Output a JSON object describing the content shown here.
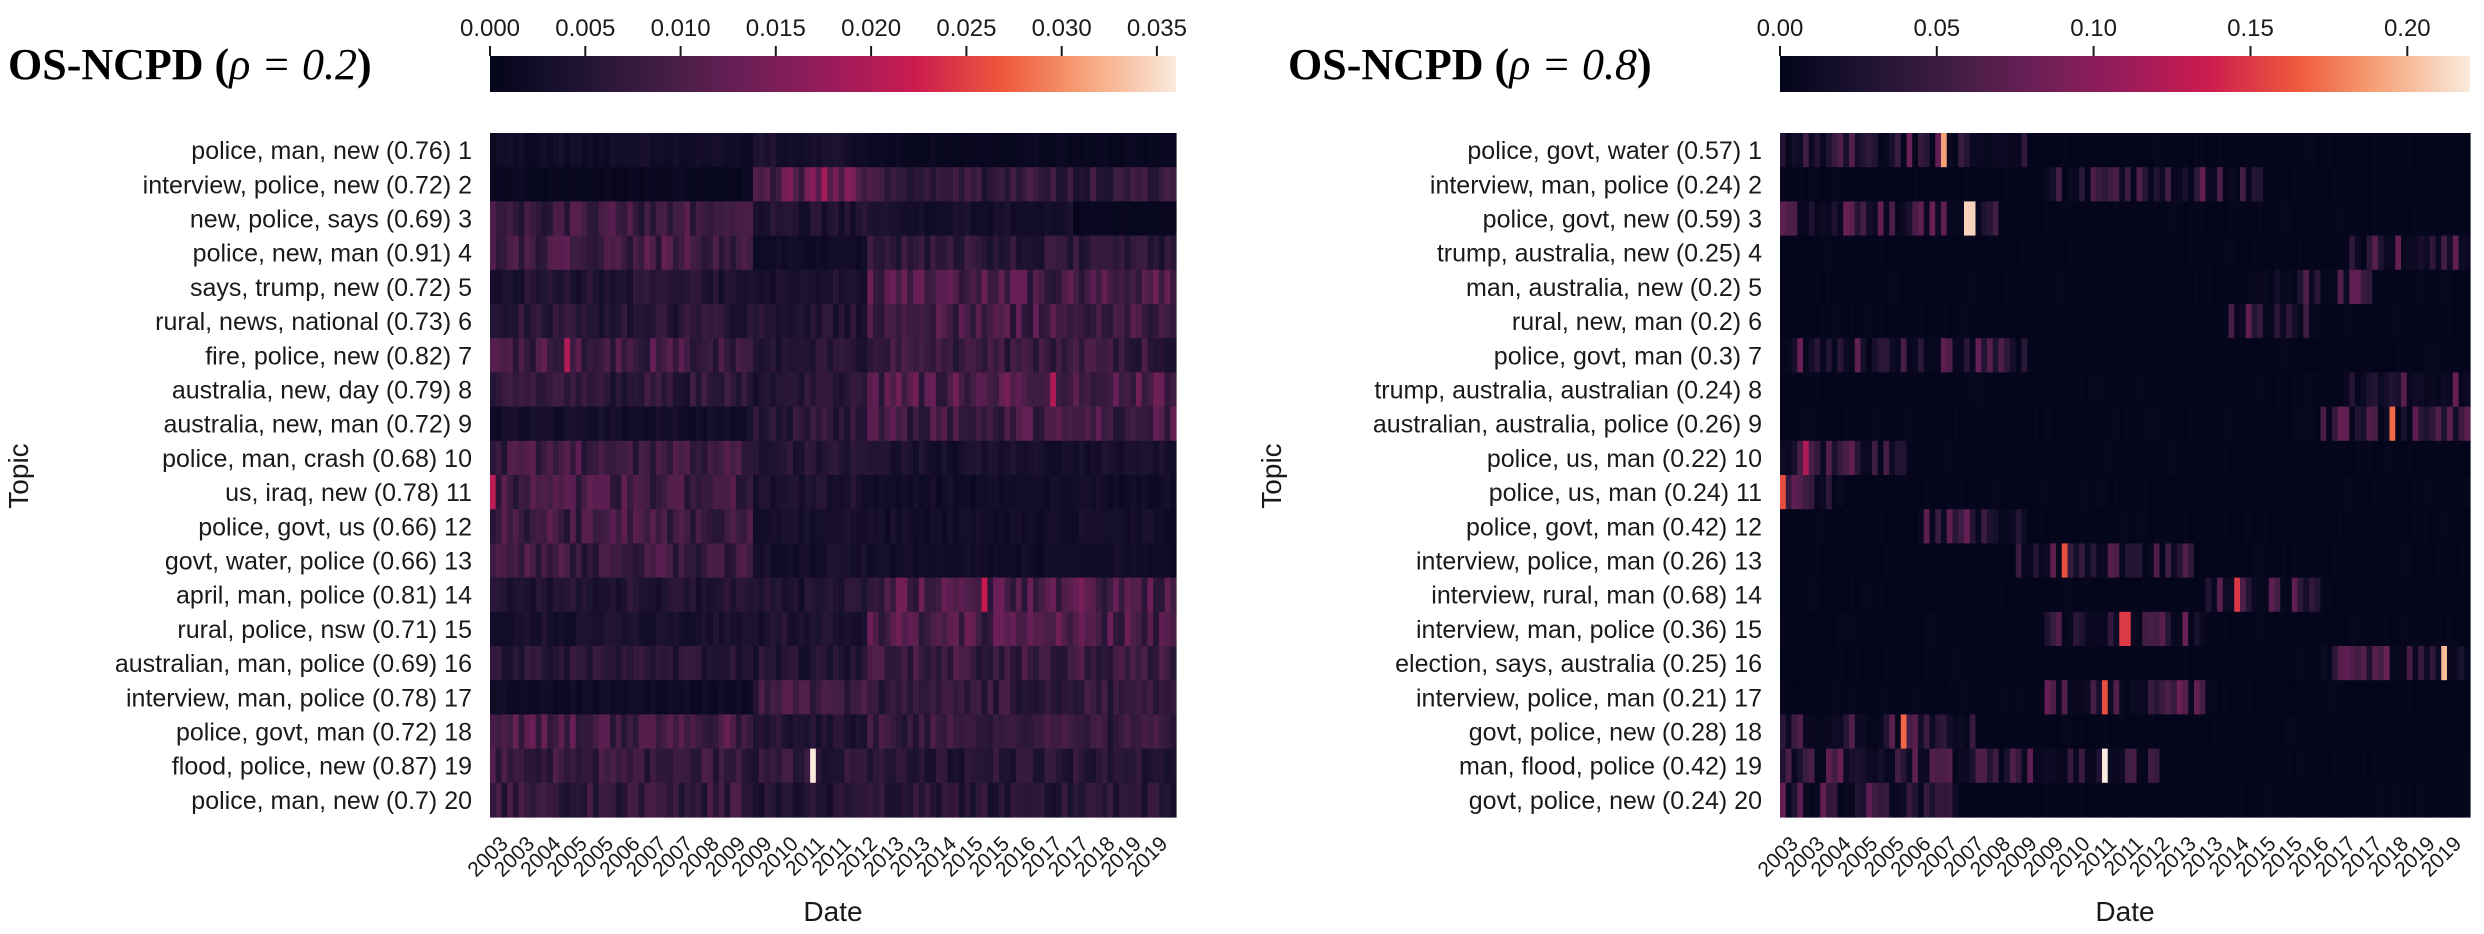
{
  "chart_data": [
    {
      "type": "heatmap",
      "title": "OS-NCPD (ρ = 0.2)",
      "title_prefix": "OS-NCPD (",
      "title_rho": "ρ = 0.2",
      "title_suffix": ")",
      "xlabel": "Date",
      "ylabel": "Topic",
      "x_tick_labels": [
        "2003",
        "2003",
        "2004",
        "2005",
        "2005",
        "2006",
        "2007",
        "2007",
        "2008",
        "2009",
        "2009",
        "2010",
        "2011",
        "2011",
        "2012",
        "2013",
        "2013",
        "2014",
        "2015",
        "2015",
        "2016",
        "2017",
        "2017",
        "2018",
        "2019",
        "2019"
      ],
      "rows": [
        {
          "label": "police, man, new",
          "score": "(0.76)",
          "index": "1"
        },
        {
          "label": "interview, police, new",
          "score": "(0.72)",
          "index": "2"
        },
        {
          "label": "new, police, says",
          "score": "(0.69)",
          "index": "3"
        },
        {
          "label": "police, new, man",
          "score": "(0.91)",
          "index": "4"
        },
        {
          "label": "says, trump, new",
          "score": "(0.72)",
          "index": "5"
        },
        {
          "label": "rural, news, national",
          "score": "(0.73)",
          "index": "6"
        },
        {
          "label": "fire, police, new",
          "score": "(0.82)",
          "index": "7"
        },
        {
          "label": "australia, new, day",
          "score": "(0.79)",
          "index": "8"
        },
        {
          "label": "australia, new, man",
          "score": "(0.72)",
          "index": "9"
        },
        {
          "label": "police, man, crash",
          "score": "(0.68)",
          "index": "10"
        },
        {
          "label": "us, iraq, new",
          "score": "(0.78)",
          "index": "11"
        },
        {
          "label": "police, govt, us",
          "score": "(0.66)",
          "index": "12"
        },
        {
          "label": "govt, water, police",
          "score": "(0.66)",
          "index": "13"
        },
        {
          "label": "april, man, police",
          "score": "(0.81)",
          "index": "14"
        },
        {
          "label": "rural, police, nsw",
          "score": "(0.71)",
          "index": "15"
        },
        {
          "label": "australian, man, police",
          "score": "(0.69)",
          "index": "16"
        },
        {
          "label": "interview, man, police",
          "score": "(0.78)",
          "index": "17"
        },
        {
          "label": "police, govt, man",
          "score": "(0.72)",
          "index": "18"
        },
        {
          "label": "flood, police, new",
          "score": "(0.87)",
          "index": "19"
        },
        {
          "label": "police, man, new",
          "score": "(0.7)",
          "index": "20"
        }
      ],
      "colorbar": {
        "range": [
          0.0,
          0.036
        ],
        "ticks": [
          0.0,
          0.005,
          0.01,
          0.015,
          0.02,
          0.025,
          0.03,
          0.035
        ],
        "tick_labels": [
          "0.000",
          "0.005",
          "0.010",
          "0.015",
          "0.020",
          "0.025",
          "0.030",
          "0.035"
        ]
      },
      "activity_profile": [
        {
          "level": 0.006,
          "spans": [
            [
              0.0,
              0.38,
              0.4
            ],
            [
              0.38,
              0.55,
              0.6
            ],
            [
              0.55,
              1.0,
              0.2
            ]
          ]
        },
        {
          "level": 0.008,
          "spans": [
            [
              0.0,
              0.38,
              0.15
            ],
            [
              0.38,
              0.55,
              1.4
            ],
            [
              0.55,
              1.0,
              0.9
            ]
          ]
        },
        {
          "level": 0.008,
          "spans": [
            [
              0.0,
              0.38,
              1.0
            ],
            [
              0.38,
              0.55,
              0.55
            ],
            [
              0.55,
              0.85,
              0.4
            ],
            [
              0.85,
              1.0,
              0.1
            ]
          ]
        },
        {
          "level": 0.009,
          "spans": [
            [
              0.0,
              0.38,
              1.0
            ],
            [
              0.38,
              0.55,
              0.25
            ],
            [
              0.55,
              1.0,
              0.7
            ]
          ]
        },
        {
          "level": 0.008,
          "spans": [
            [
              0.0,
              0.38,
              0.6
            ],
            [
              0.38,
              0.55,
              0.55
            ],
            [
              0.55,
              1.0,
              1.2
            ]
          ]
        },
        {
          "level": 0.008,
          "spans": [
            [
              0.0,
              0.38,
              0.7
            ],
            [
              0.38,
              0.55,
              0.6
            ],
            [
              0.55,
              1.0,
              1.1
            ]
          ]
        },
        {
          "level": 0.009,
          "spans": [
            [
              0.0,
              0.38,
              1.0
            ],
            [
              0.38,
              0.55,
              0.55
            ],
            [
              0.55,
              1.0,
              0.8
            ]
          ]
        },
        {
          "level": 0.009,
          "spans": [
            [
              0.0,
              0.38,
              0.7
            ],
            [
              0.38,
              0.55,
              0.6
            ],
            [
              0.55,
              1.0,
              1.1
            ]
          ]
        },
        {
          "level": 0.008,
          "spans": [
            [
              0.0,
              0.38,
              0.35
            ],
            [
              0.38,
              0.55,
              0.75
            ],
            [
              0.55,
              1.0,
              1.1
            ]
          ]
        },
        {
          "level": 0.008,
          "spans": [
            [
              0.0,
              0.38,
              1.05
            ],
            [
              0.38,
              0.55,
              0.7
            ],
            [
              0.55,
              1.0,
              0.45
            ]
          ]
        },
        {
          "level": 0.008,
          "spans": [
            [
              0.0,
              0.38,
              1.1
            ],
            [
              0.38,
              0.55,
              0.5
            ],
            [
              0.55,
              1.0,
              0.3
            ]
          ]
        },
        {
          "level": 0.008,
          "spans": [
            [
              0.0,
              0.38,
              1.05
            ],
            [
              0.38,
              0.55,
              0.45
            ],
            [
              0.55,
              1.0,
              0.35
            ]
          ]
        },
        {
          "level": 0.008,
          "spans": [
            [
              0.0,
              0.38,
              1.0
            ],
            [
              0.38,
              0.55,
              0.4
            ],
            [
              0.55,
              1.0,
              0.3
            ]
          ]
        },
        {
          "level": 0.009,
          "spans": [
            [
              0.0,
              0.38,
              0.55
            ],
            [
              0.38,
              0.55,
              0.55
            ],
            [
              0.55,
              1.0,
              1.15
            ]
          ]
        },
        {
          "level": 0.008,
          "spans": [
            [
              0.0,
              0.38,
              0.45
            ],
            [
              0.38,
              0.55,
              0.55
            ],
            [
              0.55,
              1.0,
              1.2
            ]
          ]
        },
        {
          "level": 0.008,
          "spans": [
            [
              0.0,
              0.38,
              0.7
            ],
            [
              0.38,
              0.55,
              0.6
            ],
            [
              0.55,
              1.0,
              0.95
            ]
          ]
        },
        {
          "level": 0.008,
          "spans": [
            [
              0.0,
              0.38,
              0.25
            ],
            [
              0.38,
              0.55,
              1.1
            ],
            [
              0.55,
              1.0,
              0.85
            ]
          ]
        },
        {
          "level": 0.009,
          "spans": [
            [
              0.0,
              0.38,
              1.05
            ],
            [
              0.38,
              0.55,
              0.6
            ],
            [
              0.55,
              1.0,
              0.8
            ]
          ]
        },
        {
          "level": 0.008,
          "spans": [
            [
              0.0,
              0.38,
              0.95
            ],
            [
              0.38,
              0.55,
              0.8
            ],
            [
              0.55,
              1.0,
              0.7
            ]
          ]
        },
        {
          "level": 0.008,
          "spans": [
            [
              0.0,
              0.38,
              0.9
            ],
            [
              0.38,
              0.55,
              0.6
            ],
            [
              0.55,
              1.0,
              0.7
            ]
          ]
        }
      ],
      "spikes": [
        {
          "row": 7,
          "at": 0.11,
          "value": 0.02
        },
        {
          "row": 19,
          "at": 0.47,
          "value": 0.036
        },
        {
          "row": 14,
          "at": 0.72,
          "value": 0.022
        },
        {
          "row": 8,
          "at": 0.82,
          "value": 0.02
        },
        {
          "row": 11,
          "at": 0.003,
          "value": 0.021
        },
        {
          "row": 2,
          "at": 0.485,
          "value": 0.019
        }
      ]
    },
    {
      "type": "heatmap",
      "title": "OS-NCPD (ρ = 0.8)",
      "title_prefix": "OS-NCPD (",
      "title_rho": "ρ = 0.8",
      "title_suffix": ")",
      "xlabel": "Date",
      "ylabel": "Topic",
      "x_tick_labels": [
        "2003",
        "2003",
        "2004",
        "2005",
        "2005",
        "2006",
        "2007",
        "2007",
        "2008",
        "2009",
        "2009",
        "2010",
        "2011",
        "2011",
        "2012",
        "2013",
        "2013",
        "2014",
        "2015",
        "2015",
        "2016",
        "2017",
        "2017",
        "2018",
        "2019",
        "2019"
      ],
      "rows": [
        {
          "label": "police, govt, water",
          "score": "(0.57)",
          "index": "1"
        },
        {
          "label": "interview, man, police",
          "score": "(0.24)",
          "index": "2"
        },
        {
          "label": "police, govt, new",
          "score": "(0.59)",
          "index": "3"
        },
        {
          "label": "trump, australia, new",
          "score": "(0.25)",
          "index": "4"
        },
        {
          "label": "man, australia, new",
          "score": "(0.2)",
          "index": "5"
        },
        {
          "label": "rural, new, man",
          "score": "(0.2)",
          "index": "6"
        },
        {
          "label": "police, govt, man",
          "score": "(0.3)",
          "index": "7"
        },
        {
          "label": "trump, australia, australian",
          "score": "(0.24)",
          "index": "8"
        },
        {
          "label": "australian, australia, police",
          "score": "(0.26)",
          "index": "9"
        },
        {
          "label": "police, us, man",
          "score": "(0.22)",
          "index": "10"
        },
        {
          "label": "police, us, man",
          "score": "(0.24)",
          "index": "11"
        },
        {
          "label": "police, govt, man",
          "score": "(0.42)",
          "index": "12"
        },
        {
          "label": "interview, police, man",
          "score": "(0.26)",
          "index": "13"
        },
        {
          "label": "interview, rural, man",
          "score": "(0.68)",
          "index": "14"
        },
        {
          "label": "interview, man, police",
          "score": "(0.36)",
          "index": "15"
        },
        {
          "label": "election, says, australia",
          "score": "(0.25)",
          "index": "16"
        },
        {
          "label": "interview, police, man",
          "score": "(0.21)",
          "index": "17"
        },
        {
          "label": "govt, police, new",
          "score": "(0.28)",
          "index": "18"
        },
        {
          "label": "man, flood, police",
          "score": "(0.42)",
          "index": "19"
        },
        {
          "label": "govt, police, new",
          "score": "(0.24)",
          "index": "20"
        }
      ],
      "colorbar": {
        "range": [
          0.0,
          0.22
        ],
        "ticks": [
          0.0,
          0.05,
          0.1,
          0.15,
          0.2
        ],
        "tick_labels": [
          "0.00",
          "0.05",
          "0.10",
          "0.15",
          "0.20"
        ]
      },
      "active_windows": [
        [
          [
            0.0,
            0.36
          ]
        ],
        [
          [
            0.38,
            0.7
          ]
        ],
        [
          [
            0.0,
            0.32
          ]
        ],
        [
          [
            0.82,
            1.0
          ]
        ],
        [
          [
            0.68,
            0.86
          ]
        ],
        [
          [
            0.64,
            0.78
          ]
        ],
        [
          [
            0.02,
            0.36
          ]
        ],
        [
          [
            0.82,
            1.0
          ]
        ],
        [
          [
            0.78,
            1.0
          ]
        ],
        [
          [
            0.0,
            0.18
          ]
        ],
        [
          [
            0.0,
            0.09
          ]
        ],
        [
          [
            0.2,
            0.36
          ]
        ],
        [
          [
            0.34,
            0.6
          ]
        ],
        [
          [
            0.62,
            0.78
          ]
        ],
        [
          [
            0.38,
            0.62
          ]
        ],
        [
          [
            0.78,
            1.0
          ]
        ],
        [
          [
            0.38,
            0.62
          ]
        ],
        [
          [
            0.0,
            0.28
          ]
        ],
        [
          [
            0.0,
            0.55
          ]
        ],
        [
          [
            0.0,
            0.26
          ]
        ]
      ],
      "peak_level": 0.08,
      "spikes": [
        {
          "row": 1,
          "at": 0.24,
          "value": 0.19
        },
        {
          "row": 3,
          "at": 0.275,
          "value": 0.21
        },
        {
          "row": 19,
          "at": 0.47,
          "value": 0.22
        },
        {
          "row": 18,
          "at": 0.18,
          "value": 0.17
        },
        {
          "row": 16,
          "at": 0.96,
          "value": 0.2
        },
        {
          "row": 9,
          "at": 0.89,
          "value": 0.17
        },
        {
          "row": 13,
          "at": 0.41,
          "value": 0.16
        },
        {
          "row": 14,
          "at": 0.66,
          "value": 0.15
        },
        {
          "row": 15,
          "at": 0.5,
          "value": 0.15
        },
        {
          "row": 17,
          "at": 0.47,
          "value": 0.16
        },
        {
          "row": 11,
          "at": 0.005,
          "value": 0.16
        },
        {
          "row": 10,
          "at": 0.04,
          "value": 0.12
        }
      ]
    }
  ]
}
